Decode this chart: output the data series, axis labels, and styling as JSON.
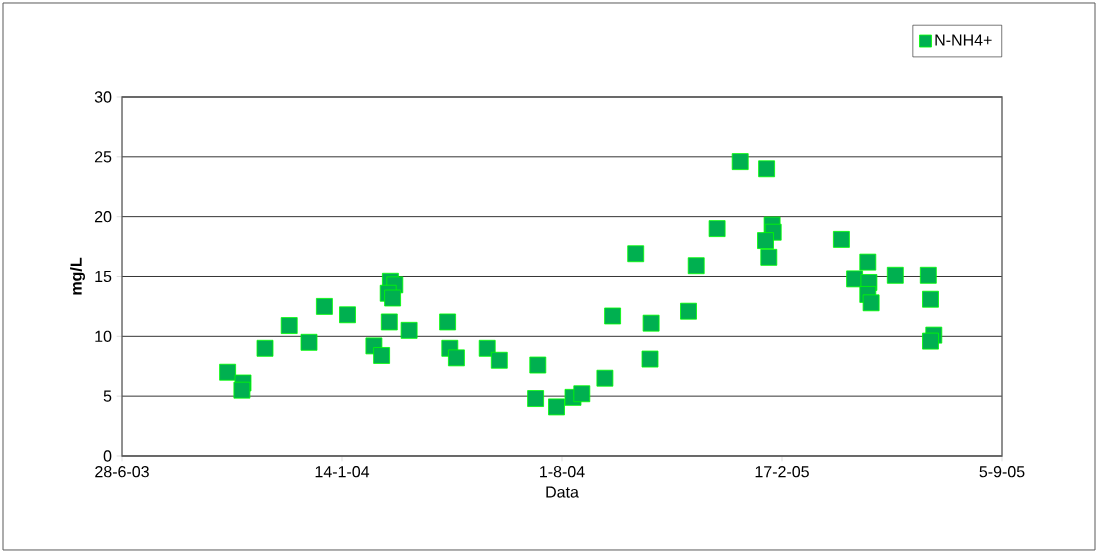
{
  "chart_data": {
    "type": "scatter",
    "xlabel": "Data",
    "ylabel": "mg/L",
    "x": [
      "2003-10-02",
      "2003-10-16",
      "2003-10-15",
      "2003-11-05",
      "2003-11-27",
      "2003-12-15",
      "2003-12-29",
      "2004-01-19",
      "2004-02-12",
      "2004-02-19",
      "2004-02-27",
      "2004-03-02",
      "2004-02-25",
      "2004-02-29",
      "2004-02-26",
      "2004-03-15",
      "2004-04-19",
      "2004-04-21",
      "2004-04-27",
      "2004-05-25",
      "2004-06-05",
      "2004-07-10",
      "2004-07-08",
      "2004-07-27",
      "2004-08-11",
      "2004-08-19",
      "2004-09-09",
      "2004-09-16",
      "2004-10-07",
      "2004-10-21",
      "2004-10-20",
      "2004-11-24",
      "2004-12-01",
      "2004-12-20",
      "2005-01-10",
      "2005-02-03",
      "2005-02-08",
      "2005-02-09",
      "2005-02-02",
      "2005-02-05",
      "2005-04-12",
      "2005-05-06",
      "2005-04-24",
      "2005-05-07",
      "2005-05-06",
      "2005-05-09",
      "2005-05-31",
      "2005-06-30",
      "2005-07-02",
      "2005-07-05",
      "2005-07-02"
    ],
    "series": [
      {
        "name": "N-NH4+",
        "color": "#00b050",
        "values": [
          7.0,
          6.1,
          5.5,
          9.0,
          10.9,
          9.5,
          12.5,
          11.8,
          9.2,
          8.4,
          14.6,
          14.3,
          13.6,
          13.2,
          11.2,
          10.5,
          11.2,
          9.0,
          8.2,
          9.0,
          8.0,
          7.6,
          4.8,
          4.1,
          4.9,
          5.2,
          6.5,
          11.7,
          16.9,
          11.1,
          8.1,
          12.1,
          15.9,
          19.0,
          24.6,
          24.0,
          19.3,
          18.7,
          18.0,
          16.6,
          18.1,
          16.2,
          14.8,
          14.5,
          13.5,
          12.8,
          15.1,
          15.1,
          13.1,
          10.1,
          9.6
        ]
      }
    ],
    "xlim": [
      "2003-06-28",
      "2005-09-05"
    ],
    "xticks": [
      {
        "value": "2003-06-28",
        "label": "28-6-03"
      },
      {
        "value": "2004-01-14",
        "label": "14-1-04"
      },
      {
        "value": "2004-08-01",
        "label": "1-8-04"
      },
      {
        "value": "2005-02-17",
        "label": "17-2-05"
      },
      {
        "value": "2005-09-05",
        "label": "5-9-05"
      }
    ],
    "ylim": [
      0,
      30
    ],
    "yticks": [
      0,
      5,
      10,
      15,
      20,
      25,
      30
    ],
    "grid": "y",
    "legend": "top right",
    "marker": "square"
  }
}
